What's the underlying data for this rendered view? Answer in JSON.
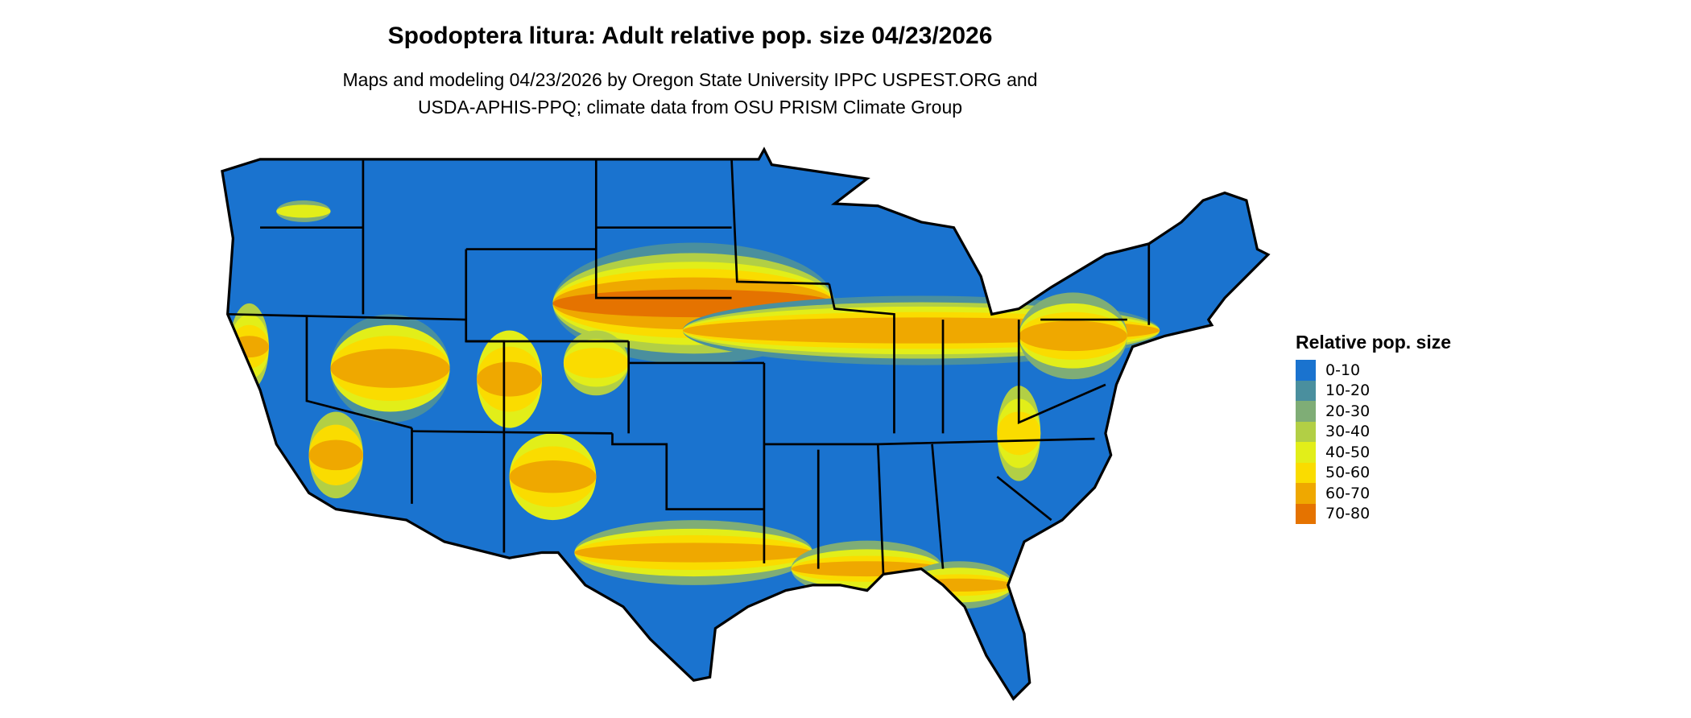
{
  "title": "Spodoptera litura: Adult relative pop. size 04/23/2026",
  "subtitle": [
    "Maps and modeling 04/23/2026 by Oregon State University IPPC USPEST.ORG and",
    "USDA-APHIS-PPQ; climate data from OSU PRISM Climate Group"
  ],
  "legend": {
    "title": "Relative pop. size",
    "items": [
      {
        "label": "0-10",
        "color": "#1a73cf"
      },
      {
        "label": "10-20",
        "color": "#4a8f9e"
      },
      {
        "label": "20-30",
        "color": "#7fad76"
      },
      {
        "label": "30-40",
        "color": "#b2cf45"
      },
      {
        "label": "40-50",
        "color": "#e2ee19"
      },
      {
        "label": "50-60",
        "color": "#fadc00"
      },
      {
        "label": "60-70",
        "color": "#efa800"
      },
      {
        "label": "70-80",
        "color": "#e57300"
      }
    ]
  }
}
